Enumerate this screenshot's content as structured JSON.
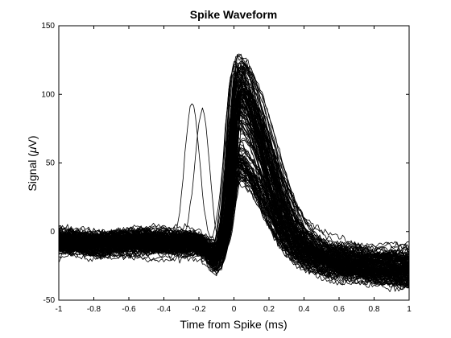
{
  "chart_data": {
    "type": "line",
    "title": "Spike Waveform",
    "xlabel": "Time from Spike (ms)",
    "ylabel_prefix": "Signal (",
    "ylabel_mu": "μ",
    "ylabel_suffix": "V)",
    "xlim": [
      -1,
      1
    ],
    "ylim": [
      -50,
      150
    ],
    "xticks": [
      -1,
      -0.8,
      -0.6,
      -0.4,
      -0.2,
      0,
      0.2,
      0.4,
      0.6,
      0.8,
      1
    ],
    "yticks": [
      -50,
      0,
      50,
      100,
      150
    ],
    "grid": false,
    "line_color": "#000000",
    "representative_traces": [
      {
        "x": [
          -1,
          -0.8,
          -0.6,
          -0.4,
          -0.3,
          -0.2,
          -0.1,
          -0.05,
          0,
          0.03,
          0.1,
          0.2,
          0.4,
          0.6,
          0.8,
          1
        ],
        "y": [
          -8,
          -10,
          -9,
          -10,
          -8,
          -12,
          -14,
          10,
          80,
          125,
          105,
          70,
          20,
          -5,
          -18,
          -25
        ]
      },
      {
        "x": [
          -1,
          -0.8,
          -0.6,
          -0.4,
          -0.3,
          -0.2,
          -0.1,
          -0.05,
          0,
          0.03,
          0.1,
          0.2,
          0.4,
          0.6,
          0.8,
          1
        ],
        "y": [
          -12,
          -14,
          -13,
          -14,
          -12,
          -16,
          -20,
          -5,
          30,
          48,
          40,
          25,
          5,
          -8,
          -20,
          -30
        ]
      },
      {
        "x": [
          -1,
          -0.8,
          -0.6,
          -0.4,
          -0.3,
          -0.25,
          -0.22,
          -0.18,
          -0.1,
          -0.05,
          0,
          0.05,
          0.2,
          0.4,
          0.6,
          0.8,
          1
        ],
        "y": [
          -5,
          -8,
          -6,
          0,
          20,
          60,
          100,
          95,
          40,
          20,
          90,
          120,
          65,
          15,
          -10,
          -20,
          -28
        ]
      }
    ],
    "trace_count": 160
  }
}
